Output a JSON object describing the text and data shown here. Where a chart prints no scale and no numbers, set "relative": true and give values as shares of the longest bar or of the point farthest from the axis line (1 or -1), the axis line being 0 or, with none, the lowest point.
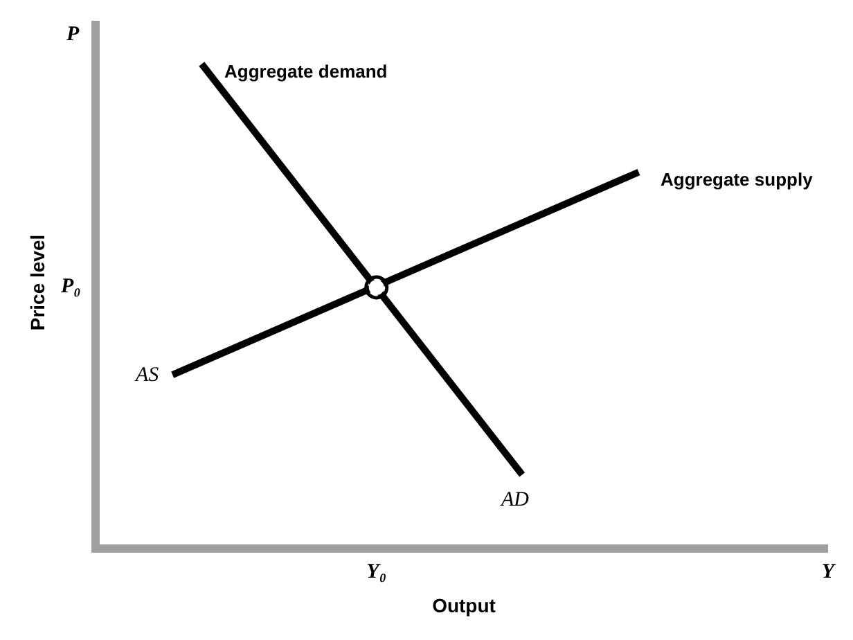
{
  "chart_data": {
    "type": "line",
    "relative": true,
    "xlabel": "Output",
    "ylabel": "Price level",
    "categories": [
      null,
      null,
      null,
      null,
      null,
      null,
      null,
      null,
      null,
      null,
      null,
      null,
      null,
      null,
      null,
      null,
      null,
      null,
      null,
      "Y₀",
      null,
      null,
      null,
      null,
      null,
      null,
      null,
      null,
      null,
      null,
      null,
      null,
      null,
      null,
      null,
      null,
      null,
      null,
      null,
      null,
      null,
      null,
      null,
      null,
      null,
      null,
      null,
      null,
      null,
      null,
      "Y"
    ],
    "series": [
      {
        "name": "Aggregate demand",
        "color": "#000000",
        "values": [
          null,
          null,
          null,
          null,
          null,
          null,
          null,
          1,
          null,
          null,
          null,
          null,
          null,
          null,
          null,
          null,
          null,
          null,
          null,
          null,
          null,
          null,
          null,
          null,
          null,
          null,
          null,
          null,
          null,
          0.145,
          null,
          null,
          null,
          null,
          null,
          null,
          null,
          null,
          null,
          null,
          null,
          null,
          null,
          null,
          null,
          null,
          null,
          null,
          null,
          null,
          null
        ]
      },
      {
        "name": "Aggregate supply",
        "color": "#000000",
        "values": [
          null,
          null,
          null,
          null,
          null,
          0.353,
          null,
          null,
          null,
          null,
          null,
          null,
          null,
          null,
          null,
          null,
          null,
          null,
          null,
          null,
          null,
          null,
          null,
          null,
          null,
          null,
          null,
          null,
          null,
          null,
          null,
          null,
          null,
          null,
          null,
          null,
          null,
          0.775,
          null,
          null,
          null,
          null,
          null,
          null,
          null,
          null,
          null,
          null,
          null,
          null,
          null
        ]
      },
      {
        "type": "scatter",
        "color": "#000000",
        "values": [
          null,
          null,
          null,
          null,
          null,
          null,
          null,
          null,
          null,
          null,
          null,
          null,
          null,
          null,
          null,
          null,
          null,
          null,
          null,
          0.535,
          null,
          null,
          null,
          null,
          null,
          null,
          null,
          null,
          null,
          null,
          null,
          null,
          null,
          null,
          null,
          null,
          null,
          null,
          null,
          null,
          null,
          null,
          null,
          null,
          null,
          null,
          null,
          null,
          null,
          null,
          null
        ],
        "marker": "circle"
      }
    ],
    "annotations": [
      "AD",
      "AS",
      "P₀",
      "P"
    ],
    "legend": false,
    "marker": "none",
    "line_style": "solid"
  }
}
